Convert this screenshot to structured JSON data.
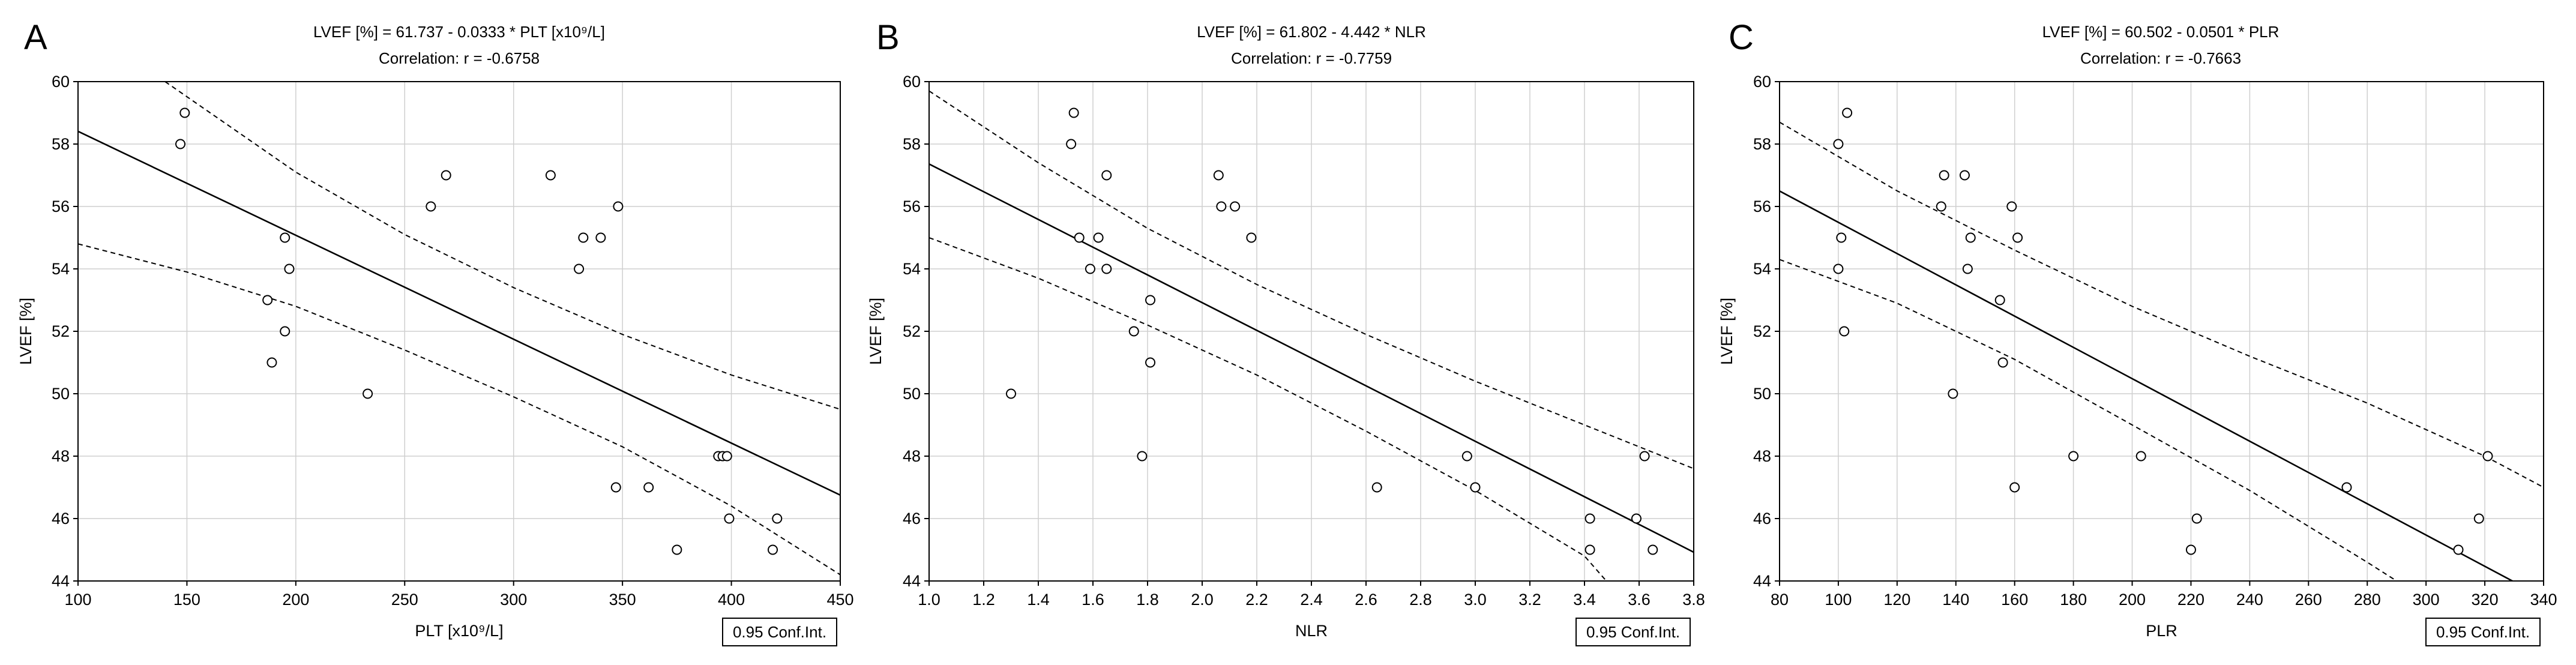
{
  "chart_data": [
    {
      "type": "scatter",
      "panel_label": "A",
      "equation": "LVEF [%] = 61.737 - 0.0333  * PLT [x10⁹/L]",
      "correlation": "Correlation: r = -0.6758",
      "xlabel": "PLT [x10⁹/L]",
      "ylabel": "LVEF [%]",
      "xlim": [
        100,
        450
      ],
      "ylim": [
        44,
        60
      ],
      "xticks": [
        100,
        150,
        200,
        250,
        300,
        350,
        400,
        450
      ],
      "yticks": [
        44,
        46,
        48,
        50,
        52,
        54,
        56,
        58,
        60
      ],
      "legend": "0.95 Conf.Int.",
      "fit": {
        "intercept": 61.737,
        "slope": -0.0333
      },
      "ci_upper": [
        [
          140,
          60
        ],
        [
          200,
          57.1
        ],
        [
          250,
          55.1
        ],
        [
          300,
          53.4
        ],
        [
          350,
          51.9
        ],
        [
          400,
          50.6
        ],
        [
          450,
          49.5
        ]
      ],
      "ci_lower": [
        [
          100,
          54.8
        ],
        [
          150,
          53.9
        ],
        [
          200,
          52.8
        ],
        [
          250,
          51.4
        ],
        [
          300,
          49.9
        ],
        [
          350,
          48.3
        ],
        [
          400,
          46.4
        ],
        [
          450,
          44.2
        ]
      ],
      "points": [
        {
          "x": 147,
          "y": 58
        },
        {
          "x": 149,
          "y": 59
        },
        {
          "x": 195,
          "y": 55
        },
        {
          "x": 197,
          "y": 54
        },
        {
          "x": 187,
          "y": 53
        },
        {
          "x": 195,
          "y": 52
        },
        {
          "x": 189,
          "y": 51
        },
        {
          "x": 233,
          "y": 50
        },
        {
          "x": 262,
          "y": 56
        },
        {
          "x": 269,
          "y": 57
        },
        {
          "x": 317,
          "y": 57
        },
        {
          "x": 332,
          "y": 55
        },
        {
          "x": 340,
          "y": 55
        },
        {
          "x": 330,
          "y": 54
        },
        {
          "x": 348,
          "y": 56
        },
        {
          "x": 347,
          "y": 47
        },
        {
          "x": 362,
          "y": 47
        },
        {
          "x": 394,
          "y": 48
        },
        {
          "x": 396,
          "y": 48
        },
        {
          "x": 398,
          "y": 48
        },
        {
          "x": 399,
          "y": 46
        },
        {
          "x": 421,
          "y": 46
        },
        {
          "x": 375,
          "y": 45
        },
        {
          "x": 419,
          "y": 45
        }
      ]
    },
    {
      "type": "scatter",
      "panel_label": "B",
      "equation": "LVEF [%] = 61.802 - 4.442  * NLR",
      "correlation": "Correlation: r = -0.7759",
      "xlabel": "NLR",
      "ylabel": "LVEF [%]",
      "xlim": [
        1.0,
        3.8
      ],
      "ylim": [
        44,
        60
      ],
      "xticks": [
        "1.0",
        "1.2",
        "1.4",
        "1.6",
        "1.8",
        "2.0",
        "2.2",
        "2.4",
        "2.6",
        "2.8",
        "3.0",
        "3.2",
        "3.4",
        "3.6",
        "3.8"
      ],
      "yticks": [
        44,
        46,
        48,
        50,
        52,
        54,
        56,
        58,
        60
      ],
      "legend": "0.95 Conf.Int.",
      "fit": {
        "intercept": 61.802,
        "slope": -4.442
      },
      "ci_upper": [
        [
          1.0,
          59.7
        ],
        [
          1.4,
          57.4
        ],
        [
          1.8,
          55.3
        ],
        [
          2.2,
          53.5
        ],
        [
          2.6,
          51.9
        ],
        [
          3.0,
          50.4
        ],
        [
          3.4,
          49.0
        ],
        [
          3.8,
          47.6
        ]
      ],
      "ci_lower": [
        [
          1.0,
          55.0
        ],
        [
          1.4,
          53.7
        ],
        [
          1.8,
          52.2
        ],
        [
          2.2,
          50.6
        ],
        [
          2.6,
          48.8
        ],
        [
          3.0,
          46.9
        ],
        [
          3.4,
          44.8
        ],
        [
          3.48,
          44.0
        ]
      ],
      "points": [
        {
          "x": 1.3,
          "y": 50
        },
        {
          "x": 1.52,
          "y": 58
        },
        {
          "x": 1.53,
          "y": 59
        },
        {
          "x": 1.55,
          "y": 55
        },
        {
          "x": 1.59,
          "y": 54
        },
        {
          "x": 1.62,
          "y": 55
        },
        {
          "x": 1.65,
          "y": 57
        },
        {
          "x": 1.65,
          "y": 54
        },
        {
          "x": 1.75,
          "y": 52
        },
        {
          "x": 1.78,
          "y": 48
        },
        {
          "x": 1.81,
          "y": 53
        },
        {
          "x": 1.81,
          "y": 51
        },
        {
          "x": 2.06,
          "y": 57
        },
        {
          "x": 2.07,
          "y": 56
        },
        {
          "x": 2.12,
          "y": 56
        },
        {
          "x": 2.18,
          "y": 55
        },
        {
          "x": 2.64,
          "y": 47
        },
        {
          "x": 2.97,
          "y": 48
        },
        {
          "x": 3.0,
          "y": 47
        },
        {
          "x": 3.42,
          "y": 46
        },
        {
          "x": 3.42,
          "y": 45
        },
        {
          "x": 3.59,
          "y": 46
        },
        {
          "x": 3.62,
          "y": 48
        },
        {
          "x": 3.65,
          "y": 45
        }
      ]
    },
    {
      "type": "scatter",
      "panel_label": "C",
      "equation": "LVEF [%] = 60.502 - 0.0501  * PLR",
      "correlation": "Correlation: r = -0.7663",
      "xlabel": "PLR",
      "ylabel": "LVEF [%]",
      "xlim": [
        80,
        340
      ],
      "ylim": [
        44,
        60
      ],
      "xticks": [
        80,
        100,
        120,
        140,
        160,
        180,
        200,
        220,
        240,
        260,
        280,
        300,
        320,
        340
      ],
      "yticks": [
        44,
        46,
        48,
        50,
        52,
        54,
        56,
        58,
        60
      ],
      "legend": "0.95 Conf.Int.",
      "fit": {
        "intercept": 60.502,
        "slope": -0.0501
      },
      "ci_upper": [
        [
          80,
          58.7
        ],
        [
          120,
          56.5
        ],
        [
          160,
          54.6
        ],
        [
          200,
          52.8
        ],
        [
          240,
          51.2
        ],
        [
          280,
          49.7
        ],
        [
          320,
          48.0
        ],
        [
          340,
          47.0
        ]
      ],
      "ci_lower": [
        [
          80,
          54.3
        ],
        [
          120,
          52.9
        ],
        [
          160,
          51.1
        ],
        [
          200,
          49.0
        ],
        [
          240,
          46.9
        ],
        [
          280,
          44.6
        ],
        [
          290,
          44.0
        ]
      ],
      "points": [
        {
          "x": 100,
          "y": 58
        },
        {
          "x": 103,
          "y": 59
        },
        {
          "x": 101,
          "y": 55
        },
        {
          "x": 100,
          "y": 54
        },
        {
          "x": 102,
          "y": 52
        },
        {
          "x": 136,
          "y": 57
        },
        {
          "x": 143,
          "y": 57
        },
        {
          "x": 135,
          "y": 56
        },
        {
          "x": 145,
          "y": 55
        },
        {
          "x": 144,
          "y": 54
        },
        {
          "x": 139,
          "y": 50
        },
        {
          "x": 155,
          "y": 53
        },
        {
          "x": 156,
          "y": 51
        },
        {
          "x": 159,
          "y": 56
        },
        {
          "x": 161,
          "y": 55
        },
        {
          "x": 160,
          "y": 47
        },
        {
          "x": 180,
          "y": 48
        },
        {
          "x": 203,
          "y": 48
        },
        {
          "x": 220,
          "y": 45
        },
        {
          "x": 222,
          "y": 46
        },
        {
          "x": 273,
          "y": 47
        },
        {
          "x": 311,
          "y": 45
        },
        {
          "x": 318,
          "y": 46
        },
        {
          "x": 321,
          "y": 48
        }
      ]
    }
  ]
}
